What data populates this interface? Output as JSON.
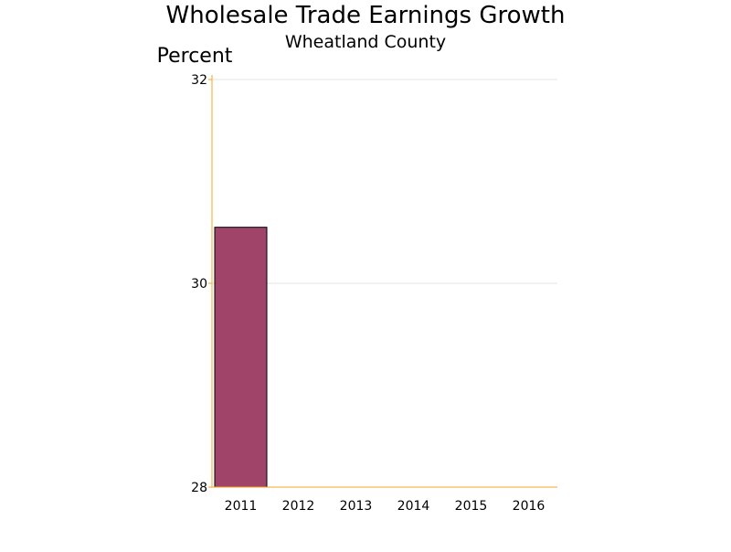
{
  "chart_data": {
    "type": "bar",
    "title": "Wholesale Trade Earnings Growth",
    "subtitle": "Wheatland County",
    "ylabel": "Percent",
    "xlabel": "",
    "categories": [
      "2011",
      "2012",
      "2013",
      "2014",
      "2015",
      "2016"
    ],
    "values": [
      30.55,
      null,
      null,
      null,
      null,
      null
    ],
    "ylim": [
      28,
      32
    ],
    "yticks": [
      28,
      30,
      32
    ],
    "grid": true,
    "legend": "none",
    "colors": {
      "bar_fill": "#a0446a",
      "bar_stroke": "#000000",
      "axis": "#f5a623",
      "gridline": "#e3e3e3",
      "text": "#000000"
    }
  }
}
